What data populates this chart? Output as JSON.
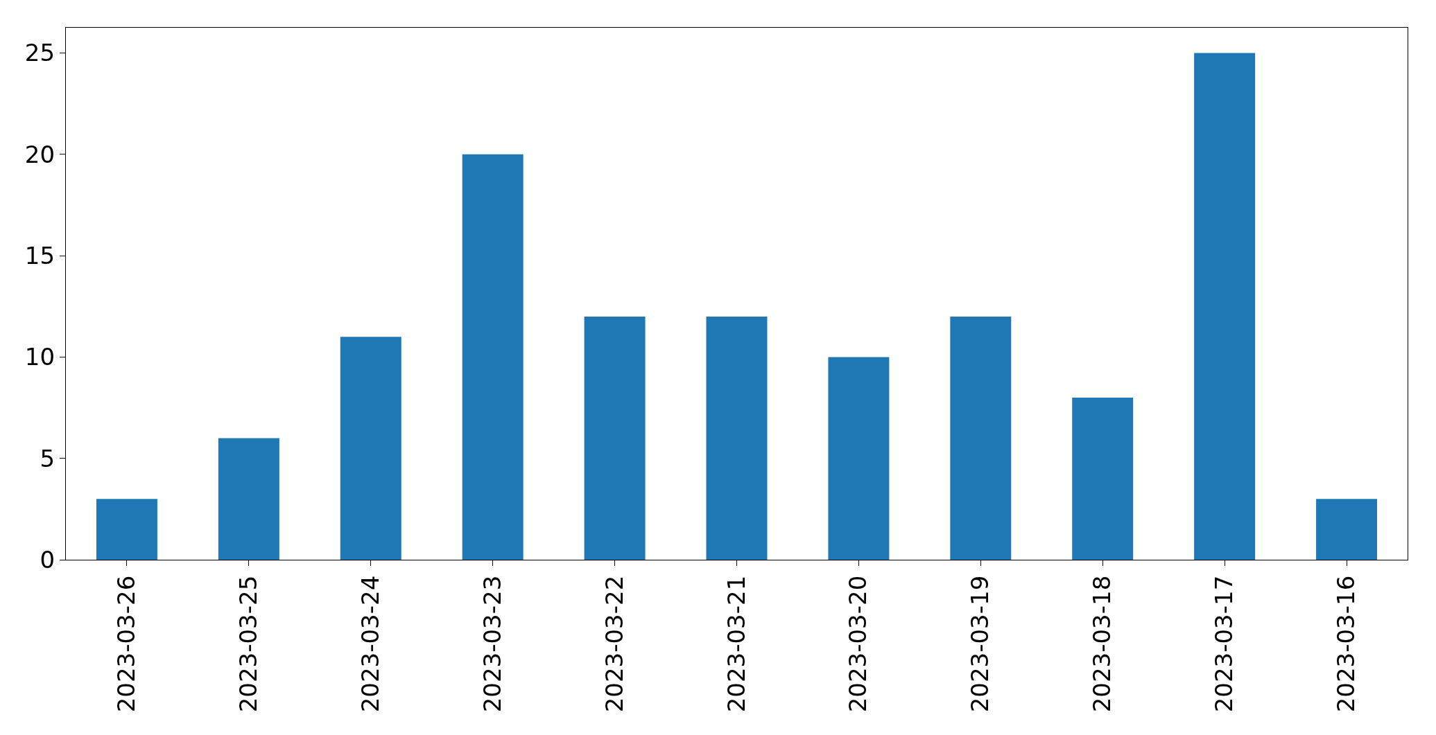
{
  "chart_data": {
    "type": "bar",
    "categories": [
      "2023-03-26",
      "2023-03-25",
      "2023-03-24",
      "2023-03-23",
      "2023-03-22",
      "2023-03-21",
      "2023-03-20",
      "2023-03-19",
      "2023-03-18",
      "2023-03-17",
      "2023-03-16"
    ],
    "values": [
      3,
      6,
      11,
      20,
      12,
      12,
      10,
      12,
      8,
      25,
      3
    ],
    "color": "#1f77b4",
    "ylim": [
      0,
      26.25
    ],
    "yticks": [
      0,
      5,
      10,
      15,
      20,
      25
    ]
  }
}
